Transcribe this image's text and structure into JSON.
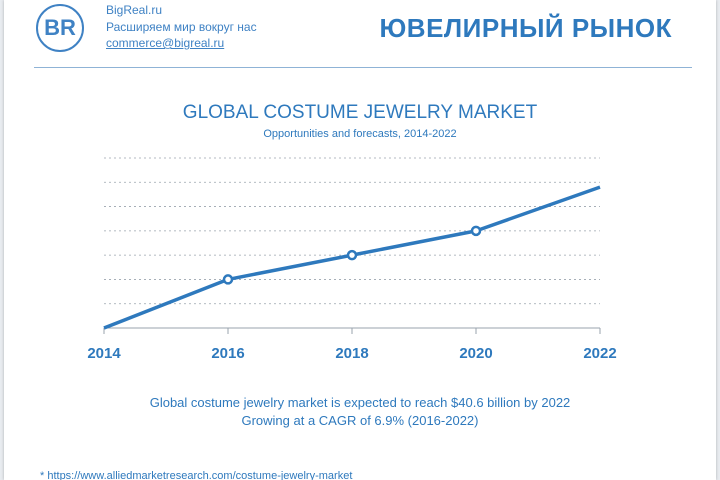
{
  "header": {
    "logo_text": "BR",
    "site": "BigReal.ru",
    "tagline": "Расширяем мир вокруг нас",
    "email": "commerce@bigreal.ru",
    "title": "ЮВЕЛИРНЫЙ РЫНОК"
  },
  "chart_data": {
    "type": "line",
    "title": "GLOBAL COSTUME JEWELRY MARKET",
    "subtitle": "Opportunities  and forecasts, 2014-2022",
    "x": [
      2014,
      2016,
      2018,
      2020,
      2022
    ],
    "x_tick_labels": [
      "2014",
      "2016",
      "2018",
      "2020",
      "2022"
    ],
    "series": [
      {
        "values": [
          0,
          2,
          3,
          4,
          5.8
        ],
        "markers": [
          false,
          true,
          true,
          true,
          false
        ]
      }
    ],
    "xlim": [
      2014,
      2022
    ],
    "ylim": [
      0,
      7
    ],
    "grid": "horizontal-dotted",
    "line_color": "#2e79bd"
  },
  "notes": {
    "line1": "Global costume jewelry market is expected to reach $40.6 billion by 2022",
    "line2": "Growing at a CAGR of 6.9% (2016-2022)"
  },
  "source": "* https://www.alliedmarketresearch.com/costume-jewelry-market"
}
